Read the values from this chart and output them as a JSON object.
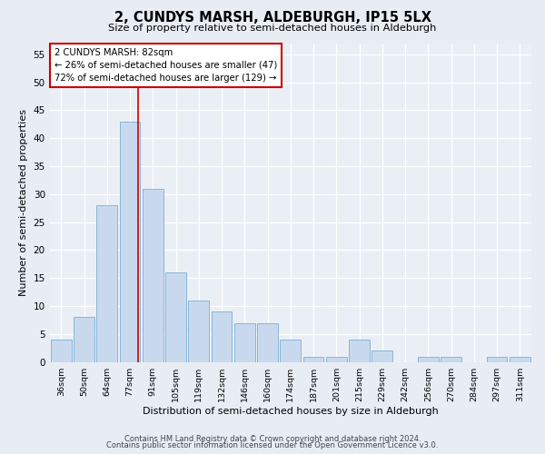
{
  "title": "2, CUNDYS MARSH, ALDEBURGH, IP15 5LX",
  "subtitle": "Size of property relative to semi-detached houses in Aldeburgh",
  "xlabel": "Distribution of semi-detached houses by size in Aldeburgh",
  "ylabel": "Number of semi-detached properties",
  "bar_labels": [
    "36sqm",
    "50sqm",
    "64sqm",
    "77sqm",
    "91sqm",
    "105sqm",
    "119sqm",
    "132sqm",
    "146sqm",
    "160sqm",
    "174sqm",
    "187sqm",
    "201sqm",
    "215sqm",
    "229sqm",
    "242sqm",
    "256sqm",
    "270sqm",
    "284sqm",
    "297sqm",
    "311sqm"
  ],
  "bar_values": [
    4,
    8,
    28,
    43,
    31,
    16,
    11,
    9,
    7,
    7,
    4,
    1,
    1,
    4,
    2,
    0,
    1,
    1,
    0,
    1,
    1
  ],
  "bar_color": "#c9d9ed",
  "bar_edge_color": "#7bafd4",
  "ylim": [
    0,
    57
  ],
  "yticks": [
    0,
    5,
    10,
    15,
    20,
    25,
    30,
    35,
    40,
    45,
    50,
    55
  ],
  "vline_color": "#cc0000",
  "annotation_title": "2 CUNDYS MARSH: 82sqm",
  "annotation_line1": "← 26% of semi-detached houses are smaller (47)",
  "annotation_line2": "72% of semi-detached houses are larger (129) →",
  "annotation_box_facecolor": "#ffffff",
  "annotation_box_edgecolor": "#cc0000",
  "footer1": "Contains HM Land Registry data © Crown copyright and database right 2024.",
  "footer2": "Contains public sector information licensed under the Open Government Licence v3.0.",
  "bg_color": "#e8edf4",
  "plot_bg_color": "#eaeff6"
}
